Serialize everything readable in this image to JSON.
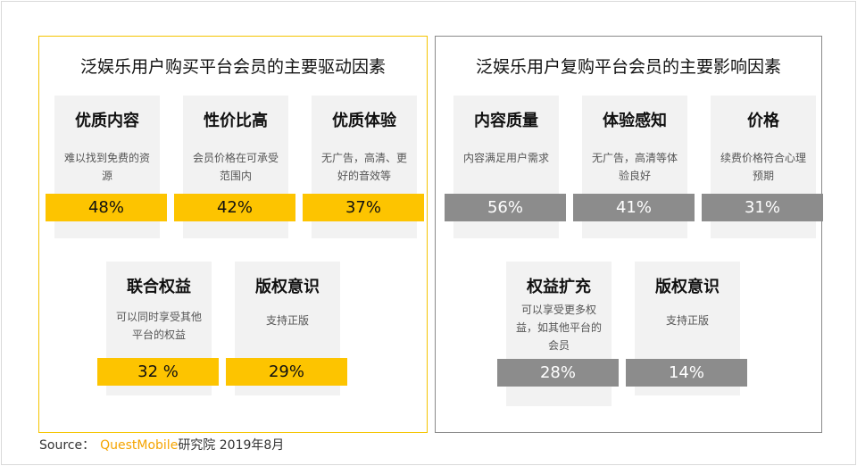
{
  "left": {
    "title": "泛娱乐用户购买平台会员的主要驱动因素",
    "cards": [
      {
        "title": "优质内容",
        "desc": "难以找到免费的资源",
        "value": "48%"
      },
      {
        "title": "性价比高",
        "desc": "会员价格在可承受范围内",
        "value": "42%"
      },
      {
        "title": "优质体验",
        "desc": "无广告，高清、更好的音效等",
        "value": "37%"
      },
      {
        "title": "联合权益",
        "desc": "可以同时享受其他平台的权益",
        "value": "32 %"
      },
      {
        "title": "版权意识",
        "desc": "支持正版",
        "value": "29%"
      }
    ]
  },
  "right": {
    "title": "泛娱乐用户复购平台会员的主要影响因素",
    "cards": [
      {
        "title": "内容质量",
        "desc": "内容满足用户需求",
        "value": "56%"
      },
      {
        "title": "体验感知",
        "desc": "无广告，高清等体验良好",
        "value": "41%"
      },
      {
        "title": "价格",
        "desc": "续费价格符合心理预期",
        "value": "31%"
      },
      {
        "title": "权益扩充",
        "desc": "可以享受更多权益，如其他平台的会员",
        "value": "28%"
      },
      {
        "title": "版权意识",
        "desc": "支持正版",
        "value": "14%"
      }
    ]
  },
  "source": {
    "label": "Source：",
    "brand": "QuestMobile",
    "suffix": "研究院 2019年8月"
  },
  "colors": {
    "yellow": "#fdc400",
    "gray": "#8c8c8c",
    "panel_left_border": "#f5c400",
    "panel_right_border": "#8a8a8a"
  },
  "chart_data": [
    {
      "type": "table",
      "title": "泛娱乐用户购买平台会员的主要驱动因素",
      "categories": [
        "优质内容",
        "性价比高",
        "优质体验",
        "联合权益",
        "版权意识"
      ],
      "values": [
        48,
        42,
        37,
        32,
        29
      ]
    },
    {
      "type": "table",
      "title": "泛娱乐用户复购平台会员的主要影响因素",
      "categories": [
        "内容质量",
        "体验感知",
        "价格",
        "权益扩充",
        "版权意识"
      ],
      "values": [
        56,
        41,
        31,
        28,
        14
      ]
    }
  ]
}
